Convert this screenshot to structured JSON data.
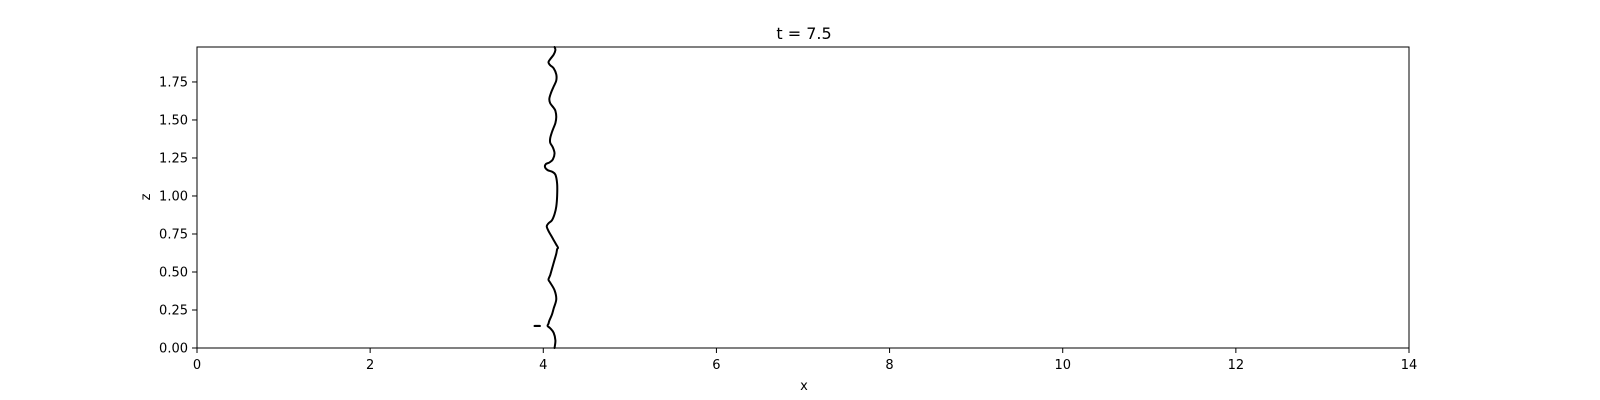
{
  "chart_data": {
    "type": "line",
    "title": "t = 7.5",
    "xlabel": "x",
    "ylabel": "z",
    "xlim": [
      0,
      14
    ],
    "ylim": [
      0,
      1.98
    ],
    "xticks": [
      0,
      2,
      4,
      6,
      8,
      10,
      12,
      14
    ],
    "yticks": [
      0.0,
      0.25,
      0.5,
      0.75,
      1.0,
      1.25,
      1.5,
      1.75
    ],
    "ytick_labels": [
      "0.00",
      "0.25",
      "0.50",
      "0.75",
      "1.00",
      "1.25",
      "1.50",
      "1.75"
    ],
    "grid": false,
    "legend": "none",
    "series": [
      {
        "style": "interface-contour",
        "color": "#000000",
        "x": [
          4.13,
          4.14,
          4.12,
          4.08,
          4.05,
          4.06,
          4.07,
          4.1,
          4.12,
          4.15,
          4.13,
          4.08,
          4.06,
          4.08,
          4.1,
          4.13,
          4.15,
          4.16,
          4.17,
          4.15,
          4.12,
          4.09,
          4.06,
          4.04,
          4.06,
          4.1,
          4.13,
          4.15,
          4.16,
          4.16,
          4.14,
          4.1,
          4.05,
          4.02,
          4.03,
          4.07,
          4.11,
          4.13,
          4.11,
          4.08,
          4.08,
          4.1,
          4.12,
          4.14,
          4.15,
          4.14,
          4.12,
          4.08,
          4.07,
          4.09,
          4.12,
          4.15,
          4.15,
          4.12,
          4.08,
          4.06,
          4.08,
          4.12,
          4.14,
          4.13
        ],
        "y": [
          0.0,
          0.05,
          0.1,
          0.13,
          0.145,
          0.16,
          0.18,
          0.22,
          0.26,
          0.32,
          0.38,
          0.43,
          0.45,
          0.48,
          0.52,
          0.58,
          0.62,
          0.65,
          0.66,
          0.68,
          0.71,
          0.74,
          0.77,
          0.8,
          0.82,
          0.84,
          0.88,
          0.93,
          1.0,
          1.08,
          1.14,
          1.16,
          1.17,
          1.19,
          1.21,
          1.22,
          1.24,
          1.28,
          1.32,
          1.35,
          1.38,
          1.42,
          1.45,
          1.48,
          1.52,
          1.56,
          1.58,
          1.61,
          1.64,
          1.68,
          1.72,
          1.76,
          1.8,
          1.84,
          1.86,
          1.88,
          1.9,
          1.93,
          1.96,
          1.98
        ]
      },
      {
        "style": "droplet",
        "color": "#000000",
        "x": [
          3.9,
          3.96
        ],
        "y": [
          0.145,
          0.145
        ]
      }
    ]
  }
}
